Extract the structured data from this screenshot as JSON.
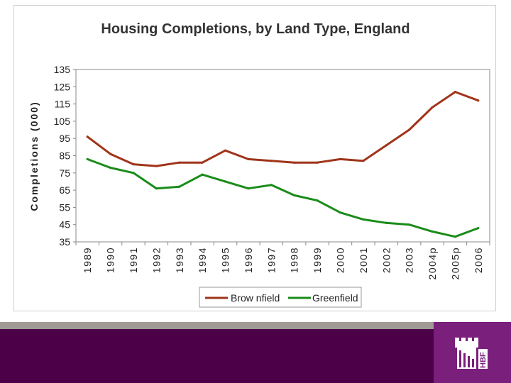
{
  "chart_data": {
    "type": "line",
    "title": "Housing Completions, by Land Type, England",
    "xlabel": "",
    "ylabel": "Completions (000)",
    "categories": [
      "1989",
      "1990",
      "1991",
      "1992",
      "1993",
      "1994",
      "1995",
      "1996",
      "1997",
      "1998",
      "1999",
      "2000",
      "2001",
      "2002",
      "2003",
      "2004p",
      "2005p",
      "2006"
    ],
    "ylim": [
      35,
      135
    ],
    "yticks": [
      35,
      45,
      55,
      65,
      75,
      85,
      95,
      105,
      115,
      125,
      135
    ],
    "grid": false,
    "legend": "bottom",
    "series": [
      {
        "name": "Brow nfield",
        "color": "#a0341a",
        "values": [
          96,
          86,
          80,
          79,
          81,
          81,
          88,
          83,
          82,
          81,
          81,
          83,
          82,
          91,
          100,
          113,
          122,
          117
        ]
      },
      {
        "name": "Greenfield",
        "color": "#1a8c1a",
        "values": [
          83,
          78,
          75,
          66,
          67,
          74,
          70,
          66,
          68,
          62,
          59,
          52,
          48,
          46,
          45,
          41,
          38,
          43
        ]
      }
    ]
  },
  "colors": {
    "footer_purple": "#4c0048",
    "footer_grey": "#a09a96",
    "logo_purple": "#7a1f7c"
  },
  "logo": {
    "text": "HBF"
  }
}
